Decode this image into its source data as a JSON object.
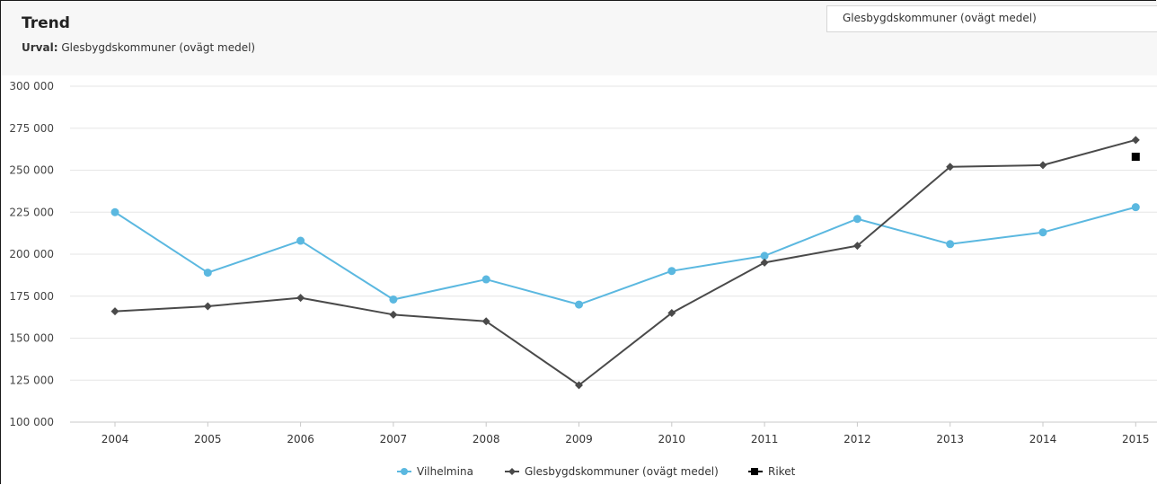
{
  "header": {
    "title": "Trend",
    "urval_label": "Urval:",
    "urval_value": "Glesbygdskommuner (ovägt medel)",
    "selector_value": "Glesbygdskommuner (ovägt medel)"
  },
  "chart_data": {
    "type": "line",
    "x": [
      "2004",
      "2005",
      "2006",
      "2007",
      "2008",
      "2009",
      "2010",
      "2011",
      "2012",
      "2013",
      "2014",
      "2015"
    ],
    "yticks": [
      "100 000",
      "125 000",
      "150 000",
      "175 000",
      "200 000",
      "225 000",
      "250 000",
      "275 000",
      "300 000"
    ],
    "ylim": [
      100000,
      300000
    ],
    "grid": true,
    "legend_position": "bottom-center",
    "series": [
      {
        "name": "Vilhelmina",
        "color": "#5bb8e0",
        "marker": "circle",
        "values": [
          225000,
          189000,
          208000,
          173000,
          185000,
          170000,
          190000,
          199000,
          221000,
          206000,
          213000,
          228000
        ]
      },
      {
        "name": "Glesbygdskommuner (ovägt medel)",
        "color": "#4a4a4a",
        "marker": "diamond",
        "values": [
          166000,
          169000,
          174000,
          164000,
          160000,
          122000,
          165000,
          195000,
          205000,
          252000,
          253000,
          268000
        ]
      },
      {
        "name": "Riket",
        "color": "#000000",
        "marker": "square",
        "values": [
          null,
          null,
          null,
          null,
          null,
          null,
          null,
          null,
          null,
          null,
          null,
          258000
        ]
      }
    ]
  }
}
